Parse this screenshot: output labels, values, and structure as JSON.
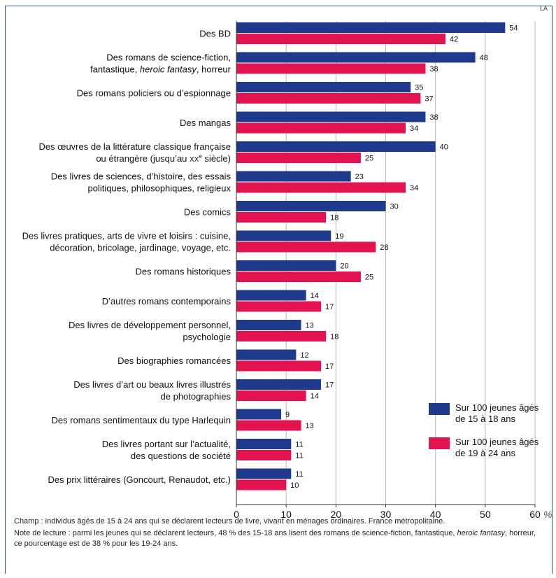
{
  "corner_mark": "LA ",
  "colors": {
    "series1": "#1f3a8c",
    "series2": "#e3134f",
    "frame": "#2f4f95"
  },
  "chart_data": {
    "type": "bar",
    "orientation": "horizontal",
    "categories": [
      [
        "Des BD"
      ],
      [
        "Des romans de science-fiction,",
        "fantastique, heroic fantasy, horreur"
      ],
      [
        "Des romans policiers ou d’espionnage"
      ],
      [
        "Des mangas"
      ],
      [
        "Des œuvres de la littérature classique française",
        "ou étrangère (jusqu’au xxe siècle)"
      ],
      [
        "Des livres de sciences, d’histoire, des essais",
        "politiques, philosophiques, religieux"
      ],
      [
        "Des comics"
      ],
      [
        "Des livres pratiques, arts de vivre et loisirs : cuisine,",
        "décoration, bricolage, jardinage, voyage, etc."
      ],
      [
        "Des romans historiques"
      ],
      [
        "D’autres romans contemporains"
      ],
      [
        "Des livres de développement personnel,",
        "psychologie"
      ],
      [
        "Des biographies romancées"
      ],
      [
        "Des livres d’art ou beaux livres illustrés",
        "de photographies"
      ],
      [
        "Des romans sentimentaux du type Harlequin"
      ],
      [
        "Des livres portant sur l’actualité,",
        "des questions de société"
      ],
      [
        "Des prix littéraires (Goncourt, Renaudot, etc.)"
      ]
    ],
    "series": [
      {
        "name": "Sur 100 jeunes âgés de 15 à 18 ans",
        "values": [
          54,
          48,
          35,
          38,
          40,
          23,
          30,
          19,
          20,
          14,
          13,
          12,
          17,
          9,
          11,
          11
        ]
      },
      {
        "name": "Sur 100 jeunes âgés de 19 à 24 ans",
        "values": [
          42,
          38,
          37,
          34,
          25,
          34,
          18,
          28,
          25,
          17,
          18,
          17,
          14,
          13,
          11,
          10
        ]
      }
    ],
    "xlim": [
      0,
      60
    ],
    "xticks": [
      "0",
      "10",
      "20",
      "30",
      "40",
      "50",
      "60"
    ],
    "xunit": "%",
    "grid": true,
    "legend_position": "bottom-right"
  },
  "legend": {
    "s1_line1": "Sur 100 jeunes âgés",
    "s1_line2": "de 15 à 18 ans",
    "s2_line1": "Sur 100 jeunes âgés",
    "s2_line2": "de 19 à 24 ans"
  },
  "notes": {
    "champ": "Champ : individus âgés de 15 à 24 ans qui se déclarent lecteurs de livre, vivant en ménages ordinaires. France métropolitaine.",
    "lecture_before": "Note de lecture : parmi les jeunes qui se déclarent lecteurs, 48 % des 15-18 ans lisent des romans de science-fiction, fantastique, ",
    "lecture_italic": "heroic fantasy",
    "lecture_after": ", horreur, ce pourcentage est de 38 % pour les 19-24 ans."
  }
}
